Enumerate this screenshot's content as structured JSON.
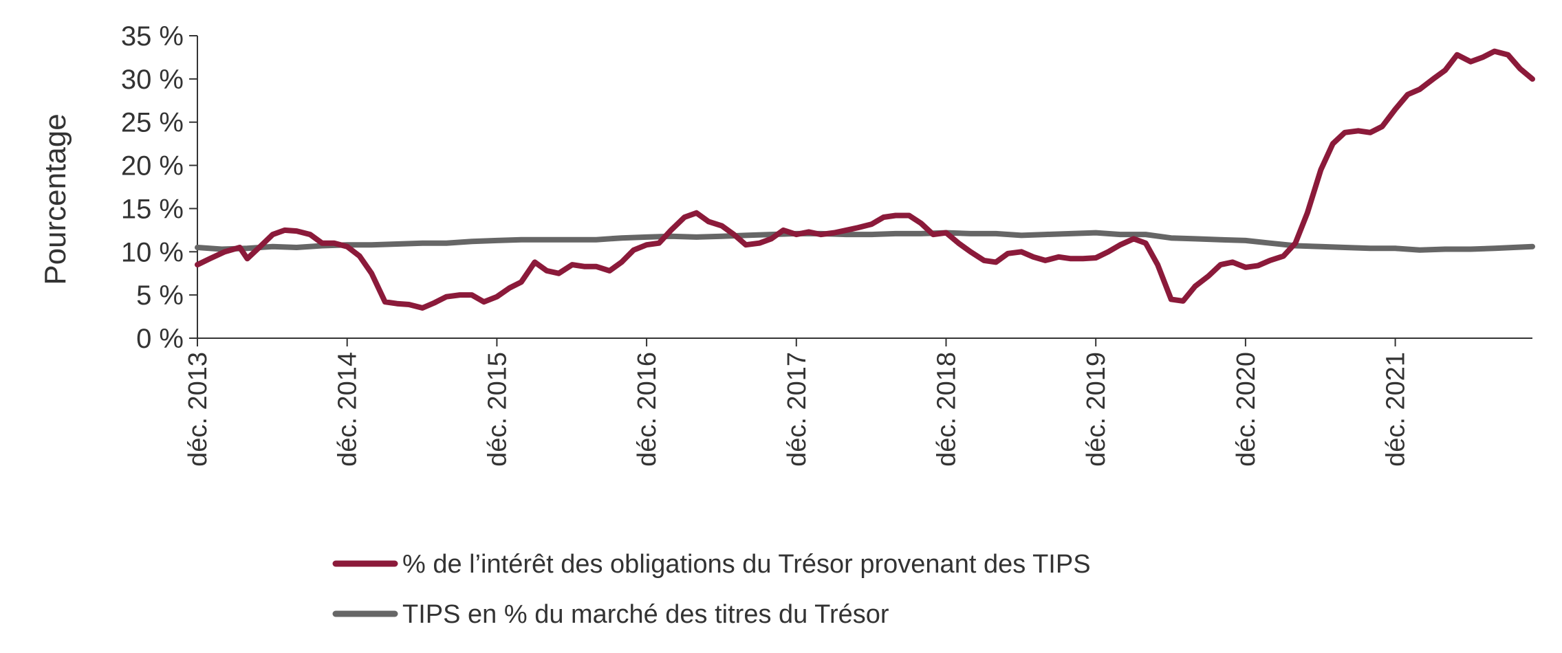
{
  "chart_data": {
    "type": "line",
    "title": "",
    "xlabel": "",
    "ylabel": "Pourcentage",
    "ylim": [
      0,
      35
    ],
    "yticks": [
      "0 %",
      "5 %",
      "10 %",
      "15 %",
      "20 %",
      "25 %",
      "30 %",
      "35 %"
    ],
    "xticks": [
      "déc. 2013",
      "déc. 2014",
      "déc. 2015",
      "déc. 2016",
      "déc. 2017",
      "déc. 2018",
      "déc. 2019",
      "déc. 2020",
      "déc. 2021"
    ],
    "xlim": [
      2013.917,
      2022.833
    ],
    "grid": false,
    "legend_position": "bottom",
    "series": [
      {
        "name": "% de l’intérêt des obligations du Trésor provenant des TIPS",
        "color": "#8B1A3A",
        "points": [
          [
            2013.917,
            8.5
          ],
          [
            2014.0,
            9.2
          ],
          [
            2014.1,
            10.0
          ],
          [
            2014.2,
            10.5
          ],
          [
            2014.25,
            9.2
          ],
          [
            2014.33,
            10.5
          ],
          [
            2014.42,
            12.0
          ],
          [
            2014.5,
            12.5
          ],
          [
            2014.58,
            12.4
          ],
          [
            2014.67,
            12.0
          ],
          [
            2014.75,
            11.0
          ],
          [
            2014.83,
            11.0
          ],
          [
            2014.917,
            10.6
          ],
          [
            2015.0,
            9.5
          ],
          [
            2015.08,
            7.5
          ],
          [
            2015.17,
            4.2
          ],
          [
            2015.25,
            4.0
          ],
          [
            2015.33,
            3.9
          ],
          [
            2015.42,
            3.5
          ],
          [
            2015.5,
            4.1
          ],
          [
            2015.58,
            4.8
          ],
          [
            2015.67,
            5.0
          ],
          [
            2015.75,
            5.0
          ],
          [
            2015.83,
            4.2
          ],
          [
            2015.917,
            4.8
          ],
          [
            2016.0,
            5.8
          ],
          [
            2016.08,
            6.5
          ],
          [
            2016.17,
            8.8
          ],
          [
            2016.25,
            7.8
          ],
          [
            2016.33,
            7.5
          ],
          [
            2016.42,
            8.5
          ],
          [
            2016.5,
            8.3
          ],
          [
            2016.58,
            8.3
          ],
          [
            2016.67,
            7.8
          ],
          [
            2016.75,
            8.8
          ],
          [
            2016.83,
            10.2
          ],
          [
            2016.917,
            10.8
          ],
          [
            2017.0,
            11.0
          ],
          [
            2017.08,
            12.5
          ],
          [
            2017.17,
            14.0
          ],
          [
            2017.25,
            14.5
          ],
          [
            2017.33,
            13.5
          ],
          [
            2017.42,
            13.0
          ],
          [
            2017.5,
            12.0
          ],
          [
            2017.58,
            10.8
          ],
          [
            2017.67,
            11.0
          ],
          [
            2017.75,
            11.5
          ],
          [
            2017.83,
            12.5
          ],
          [
            2017.917,
            12.0
          ],
          [
            2018.0,
            12.3
          ],
          [
            2018.08,
            12.0
          ],
          [
            2018.17,
            12.2
          ],
          [
            2018.25,
            12.5
          ],
          [
            2018.33,
            12.8
          ],
          [
            2018.42,
            13.2
          ],
          [
            2018.5,
            14.0
          ],
          [
            2018.58,
            14.2
          ],
          [
            2018.67,
            14.2
          ],
          [
            2018.75,
            13.3
          ],
          [
            2018.83,
            12.0
          ],
          [
            2018.917,
            12.2
          ],
          [
            2019.0,
            11.0
          ],
          [
            2019.08,
            10.0
          ],
          [
            2019.17,
            9.0
          ],
          [
            2019.25,
            8.8
          ],
          [
            2019.33,
            9.8
          ],
          [
            2019.42,
            10.0
          ],
          [
            2019.5,
            9.4
          ],
          [
            2019.58,
            9.0
          ],
          [
            2019.67,
            9.4
          ],
          [
            2019.75,
            9.2
          ],
          [
            2019.83,
            9.2
          ],
          [
            2019.917,
            9.3
          ],
          [
            2020.0,
            10.0
          ],
          [
            2020.08,
            10.8
          ],
          [
            2020.17,
            11.5
          ],
          [
            2020.25,
            11.0
          ],
          [
            2020.33,
            8.5
          ],
          [
            2020.42,
            4.5
          ],
          [
            2020.5,
            4.3
          ],
          [
            2020.58,
            6.0
          ],
          [
            2020.67,
            7.2
          ],
          [
            2020.75,
            8.5
          ],
          [
            2020.83,
            8.8
          ],
          [
            2020.917,
            8.2
          ],
          [
            2021.0,
            8.4
          ],
          [
            2021.08,
            9.0
          ],
          [
            2021.17,
            9.5
          ],
          [
            2021.25,
            11.0
          ],
          [
            2021.33,
            14.5
          ],
          [
            2021.42,
            19.5
          ],
          [
            2021.5,
            22.5
          ],
          [
            2021.58,
            23.8
          ],
          [
            2021.67,
            24.0
          ],
          [
            2021.75,
            23.8
          ],
          [
            2021.83,
            24.5
          ],
          [
            2021.917,
            26.5
          ],
          [
            2022.0,
            28.2
          ],
          [
            2022.08,
            28.8
          ],
          [
            2022.17,
            30.0
          ],
          [
            2022.25,
            31.0
          ],
          [
            2022.33,
            32.8
          ],
          [
            2022.42,
            32.0
          ],
          [
            2022.5,
            32.5
          ],
          [
            2022.58,
            33.2
          ],
          [
            2022.67,
            32.8
          ],
          [
            2022.75,
            31.2
          ],
          [
            2022.833,
            30.0
          ]
        ]
      },
      {
        "name": "TIPS en % du marché des titres du Trésor",
        "color": "#666666",
        "points": [
          [
            2013.917,
            10.5
          ],
          [
            2014.08,
            10.3
          ],
          [
            2014.25,
            10.4
          ],
          [
            2014.42,
            10.6
          ],
          [
            2014.58,
            10.5
          ],
          [
            2014.75,
            10.7
          ],
          [
            2014.917,
            10.8
          ],
          [
            2015.08,
            10.8
          ],
          [
            2015.25,
            10.9
          ],
          [
            2015.42,
            11.0
          ],
          [
            2015.58,
            11.0
          ],
          [
            2015.75,
            11.2
          ],
          [
            2015.917,
            11.3
          ],
          [
            2016.08,
            11.4
          ],
          [
            2016.25,
            11.4
          ],
          [
            2016.42,
            11.4
          ],
          [
            2016.58,
            11.4
          ],
          [
            2016.75,
            11.6
          ],
          [
            2016.917,
            11.7
          ],
          [
            2017.08,
            11.8
          ],
          [
            2017.25,
            11.7
          ],
          [
            2017.42,
            11.8
          ],
          [
            2017.58,
            11.9
          ],
          [
            2017.75,
            12.0
          ],
          [
            2017.917,
            12.1
          ],
          [
            2018.08,
            12.1
          ],
          [
            2018.25,
            12.0
          ],
          [
            2018.42,
            12.0
          ],
          [
            2018.58,
            12.1
          ],
          [
            2018.75,
            12.1
          ],
          [
            2018.917,
            12.2
          ],
          [
            2019.08,
            12.1
          ],
          [
            2019.25,
            12.1
          ],
          [
            2019.42,
            11.9
          ],
          [
            2019.58,
            12.0
          ],
          [
            2019.75,
            12.1
          ],
          [
            2019.917,
            12.2
          ],
          [
            2020.08,
            12.0
          ],
          [
            2020.25,
            12.0
          ],
          [
            2020.42,
            11.6
          ],
          [
            2020.58,
            11.5
          ],
          [
            2020.75,
            11.4
          ],
          [
            2020.917,
            11.3
          ],
          [
            2021.08,
            11.0
          ],
          [
            2021.25,
            10.7
          ],
          [
            2021.42,
            10.6
          ],
          [
            2021.58,
            10.5
          ],
          [
            2021.75,
            10.4
          ],
          [
            2021.917,
            10.4
          ],
          [
            2022.08,
            10.2
          ],
          [
            2022.25,
            10.3
          ],
          [
            2022.42,
            10.3
          ],
          [
            2022.58,
            10.4
          ],
          [
            2022.833,
            10.6
          ]
        ]
      }
    ]
  }
}
